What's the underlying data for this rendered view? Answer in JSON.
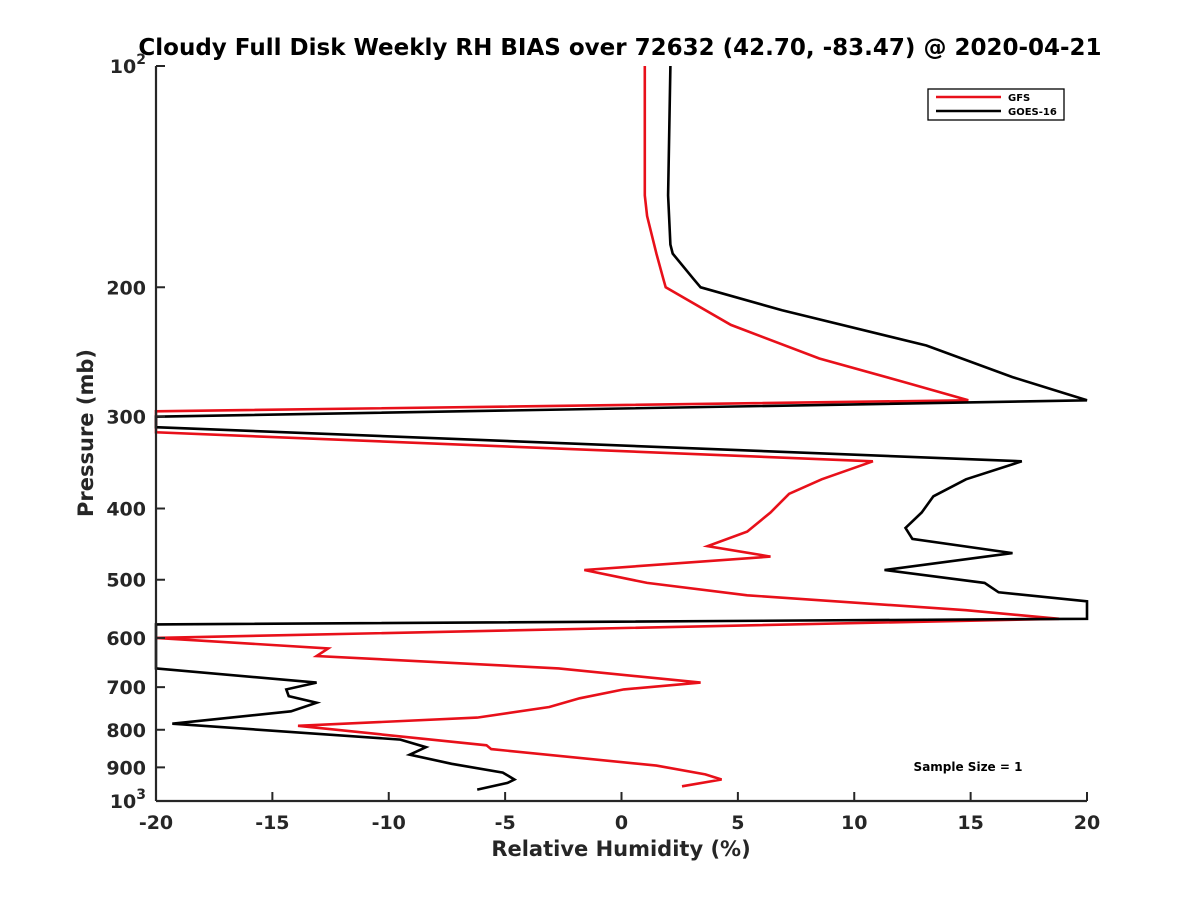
{
  "chart_data": {
    "type": "line",
    "title": "Cloudy Full Disk Weekly RH BIAS over 72632 (42.70, -83.47) @ 2020-04-21",
    "xlabel": "Relative Humidity (%)",
    "ylabel": "Pressure (mb)",
    "xlim": [
      -20,
      20
    ],
    "ylim": [
      100,
      1000
    ],
    "y_scale": "log",
    "y_reversed": true,
    "grid": false,
    "legend_position": "top-right",
    "x_ticks": [
      -20,
      -15,
      -10,
      -5,
      0,
      5,
      10,
      15,
      20
    ],
    "x_tick_labels": [
      "-20",
      "-15",
      "-10",
      "-5",
      "0",
      "5",
      "10",
      "15",
      "20"
    ],
    "y_ticks": [
      100,
      200,
      300,
      400,
      500,
      600,
      700,
      800,
      900,
      1000
    ],
    "y_tick_labels": [
      {
        "base": "10",
        "exp": "2"
      },
      {
        "base": "200",
        "exp": ""
      },
      {
        "base": "300",
        "exp": ""
      },
      {
        "base": "400",
        "exp": ""
      },
      {
        "base": "500",
        "exp": ""
      },
      {
        "base": "600",
        "exp": ""
      },
      {
        "base": "700",
        "exp": ""
      },
      {
        "base": "800",
        "exp": ""
      },
      {
        "base": "900",
        "exp": ""
      },
      {
        "base": "10",
        "exp": "3"
      }
    ],
    "annotation": "Sample Size = 1",
    "series": [
      {
        "name": "GFS",
        "color": "#e8101a",
        "points": [
          [
            1,
            100
          ],
          [
            1,
            150
          ],
          [
            1.1,
            160
          ],
          [
            1.5,
            180
          ],
          [
            1.8,
            195
          ],
          [
            1.9,
            200
          ],
          [
            4.7,
            225
          ],
          [
            8.5,
            250
          ],
          [
            12.3,
            270
          ],
          [
            14.9,
            285
          ],
          [
            -20,
            295
          ],
          [
            -20,
            315
          ],
          [
            10.8,
            345
          ],
          [
            8.6,
            365
          ],
          [
            7.2,
            382
          ],
          [
            6.4,
            405
          ],
          [
            5.4,
            430
          ],
          [
            3.7,
            450
          ],
          [
            6.4,
            465
          ],
          [
            -1.6,
            485
          ],
          [
            1.1,
            505
          ],
          [
            5.4,
            525
          ],
          [
            14.8,
            550
          ],
          [
            18.8,
            565
          ],
          [
            -20,
            600
          ],
          [
            -12.6,
            620
          ],
          [
            -13.1,
            635
          ],
          [
            -2.7,
            660
          ],
          [
            3.4,
            690
          ],
          [
            0.1,
            705
          ],
          [
            -1.8,
            725
          ],
          [
            -3.1,
            745
          ],
          [
            -6.2,
            770
          ],
          [
            -13.9,
            790
          ],
          [
            -5.8,
            840
          ],
          [
            -5.6,
            850
          ],
          [
            1.5,
            895
          ],
          [
            3.6,
            920
          ],
          [
            4.3,
            935
          ],
          [
            2.6,
            955
          ]
        ]
      },
      {
        "name": "GOES-16",
        "color": "#000000",
        "points": [
          [
            2.1,
            100
          ],
          [
            2.0,
            150
          ],
          [
            2.1,
            175
          ],
          [
            2.2,
            180
          ],
          [
            3.1,
            195
          ],
          [
            3.4,
            200
          ],
          [
            6.9,
            215
          ],
          [
            13.1,
            240
          ],
          [
            16.8,
            265
          ],
          [
            20,
            285
          ],
          [
            -20,
            300
          ],
          [
            -20,
            310
          ],
          [
            17.2,
            345
          ],
          [
            14.8,
            365
          ],
          [
            13.4,
            385
          ],
          [
            12.9,
            405
          ],
          [
            12.2,
            425
          ],
          [
            12.5,
            440
          ],
          [
            16.8,
            460
          ],
          [
            11.3,
            485
          ],
          [
            15.6,
            505
          ],
          [
            16.2,
            520
          ],
          [
            20,
            535
          ],
          [
            20,
            565
          ],
          [
            -20,
            575
          ],
          [
            -20,
            660
          ],
          [
            -13.1,
            690
          ],
          [
            -14.4,
            705
          ],
          [
            -14.3,
            720
          ],
          [
            -13.1,
            735
          ],
          [
            -14.2,
            755
          ],
          [
            -19.3,
            785
          ],
          [
            -9.5,
            825
          ],
          [
            -8.4,
            845
          ],
          [
            -9.1,
            865
          ],
          [
            -7.3,
            890
          ],
          [
            -5.1,
            915
          ],
          [
            -4.6,
            935
          ],
          [
            -4.9,
            945
          ],
          [
            -6.2,
            965
          ]
        ]
      }
    ]
  }
}
